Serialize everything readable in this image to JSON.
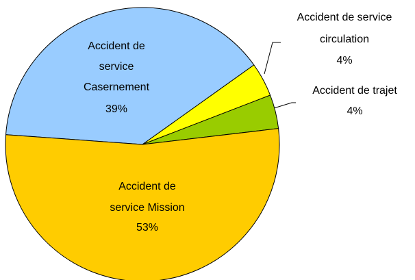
{
  "chart_data": {
    "type": "pie",
    "categories": [
      "Accident de service Casernement",
      "Accident de service circulation",
      "Accident de trajet",
      "Accident de service Mission"
    ],
    "values": [
      39,
      4,
      4,
      53
    ],
    "value_labels": [
      "39%",
      "4%",
      "4%",
      "53%"
    ],
    "colors": [
      "#99ccff",
      "#ffff00",
      "#99cc00",
      "#ffcc00"
    ]
  }
}
